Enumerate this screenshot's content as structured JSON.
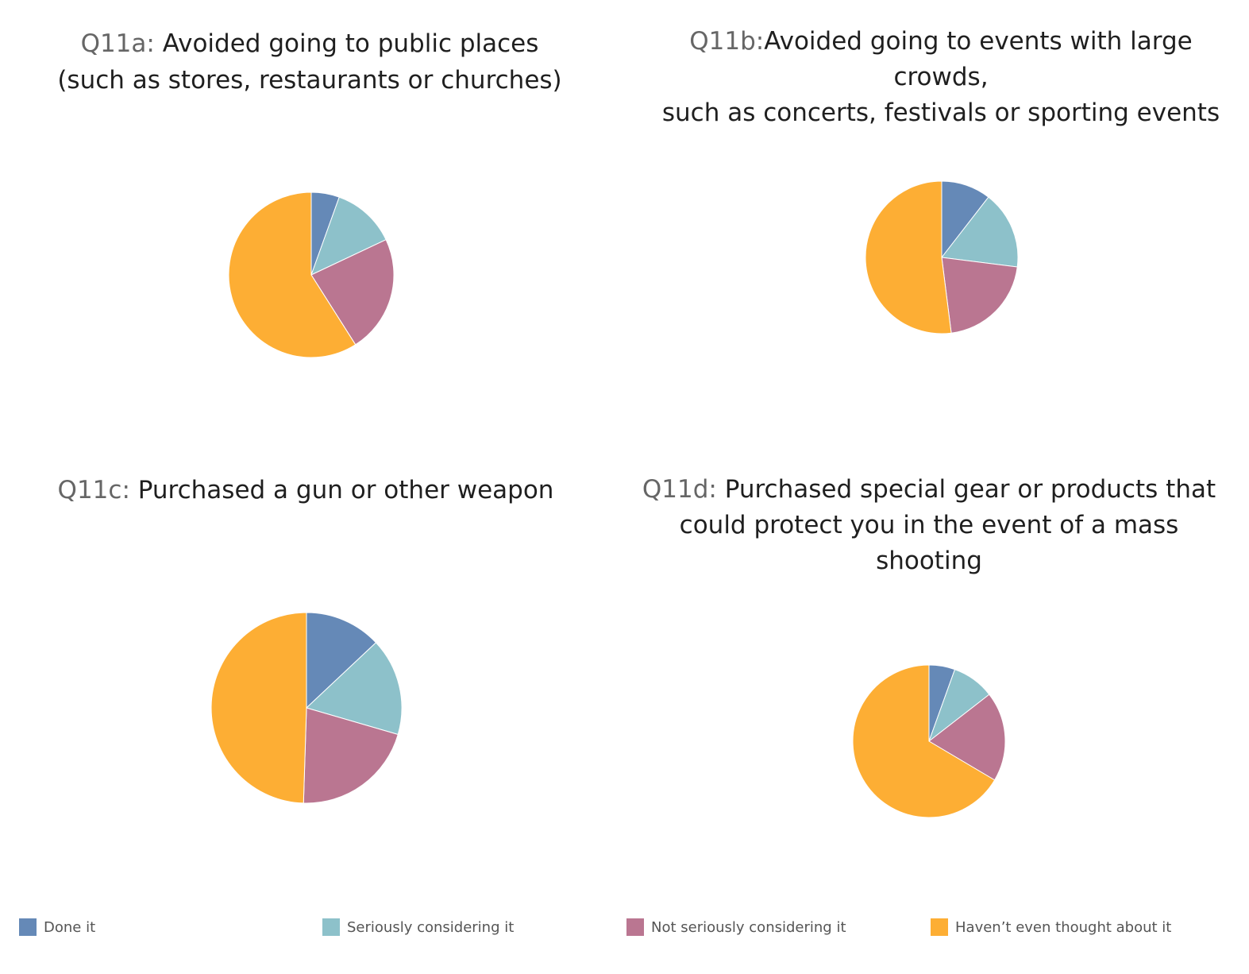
{
  "palette": {
    "done": "#6589b7",
    "seriously": "#8dc1ca",
    "not_seriously": "#ba7691",
    "havent": "#fdae34"
  },
  "legend": [
    {
      "key": "done",
      "label": "Done it"
    },
    {
      "key": "seriously",
      "label": "Seriously considering it"
    },
    {
      "key": "not_seriously",
      "label": "Not seriously considering it"
    },
    {
      "key": "havent",
      "label": "Haven’t even thought about it"
    }
  ],
  "chart_data": [
    {
      "type": "pie",
      "title_prefix": "Q11a:",
      "title_lines": [
        "Avoided going to public places",
        "(such as stores, restaurants or churches)"
      ],
      "categories": [
        "Done it",
        "Seriously considering it",
        "Not seriously considering it",
        "Haven’t even thought about it"
      ],
      "values": [
        5.5,
        12.5,
        23,
        59
      ]
    },
    {
      "type": "pie",
      "title_prefix": "Q11b:",
      "title_lines": [
        "Avoided going to events with large crowds,",
        "such as concerts, festivals or sporting events"
      ],
      "categories": [
        "Done it",
        "Seriously considering it",
        "Not seriously considering it",
        "Haven’t even thought about it"
      ],
      "values": [
        10.5,
        16.5,
        21,
        52
      ]
    },
    {
      "type": "pie",
      "title_prefix": "Q11c:",
      "title_lines": [
        "Purchased a gun or other weapon"
      ],
      "categories": [
        "Done it",
        "Seriously considering it",
        "Not seriously considering it",
        "Haven’t even thought about it"
      ],
      "values": [
        13,
        16.5,
        21,
        49.5
      ]
    },
    {
      "type": "pie",
      "title_prefix": "Q11d:",
      "title_lines": [
        "Purchased special gear or products that",
        "could protect you in the event of a mass",
        "shooting"
      ],
      "categories": [
        "Done it",
        "Seriously considering it",
        "Not seriously considering it",
        "Haven’t even thought about it"
      ],
      "values": [
        5.5,
        9,
        19,
        66.5
      ]
    }
  ]
}
